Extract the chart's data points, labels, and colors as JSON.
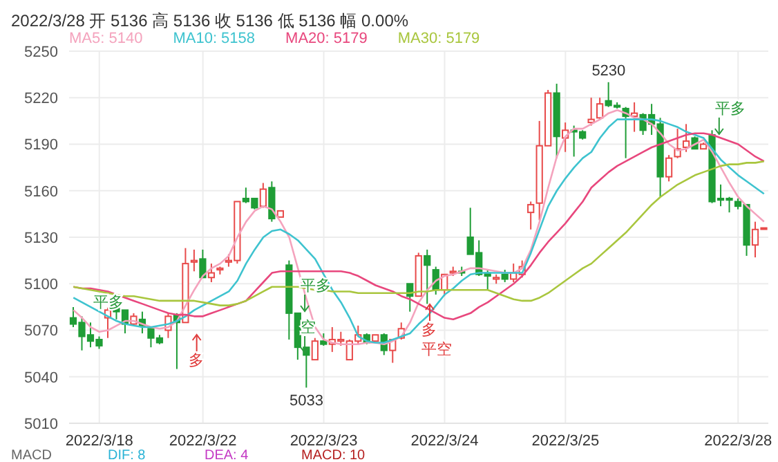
{
  "chart_data": {
    "type": "candlestick",
    "title": "2022/3/28 开 5136 高 5136 收 5136 低 5136 幅 0.00%",
    "categories": [
      null,
      null,
      null,
      "2022/3/18",
      null,
      null,
      null,
      null,
      null,
      null,
      null,
      null,
      null,
      null,
      null,
      "2022/3/22",
      null,
      null,
      null,
      null,
      null,
      null,
      null,
      null,
      null,
      null,
      null,
      null,
      null,
      "2022/3/23",
      null,
      null,
      null,
      null,
      null,
      null,
      null,
      null,
      null,
      null,
      null,
      null,
      null,
      "2022/3/24",
      null,
      null,
      null,
      null,
      null,
      null,
      null,
      null,
      null,
      null,
      null,
      null,
      null,
      "2022/3/25",
      null,
      null,
      null,
      null,
      null,
      null,
      null,
      null,
      null,
      null,
      null,
      null,
      null,
      null,
      null,
      null,
      null,
      null,
      null,
      "2022/3/28",
      null,
      null,
      null
    ],
    "ohlc": [
      [
        5078,
        5085,
        5072,
        5074
      ],
      [
        5075,
        5079,
        5057,
        5066
      ],
      [
        5067,
        5075,
        5059,
        5063
      ],
      [
        5064,
        5066,
        5058,
        5060
      ],
      [
        5078,
        5085,
        5065,
        5083
      ],
      [
        5084,
        5086,
        5077,
        5082
      ],
      [
        5083,
        5083,
        5068,
        5074
      ],
      [
        5074,
        5081,
        5073,
        5079
      ],
      [
        5077,
        5082,
        5068,
        5073
      ],
      [
        5071,
        5071,
        5059,
        5065
      ],
      [
        5065,
        5067,
        5061,
        5062
      ],
      [
        5070,
        5081,
        5065,
        5079
      ],
      [
        5080,
        5081,
        5045,
        5075
      ],
      [
        5075,
        5123,
        5075,
        5113
      ],
      [
        5114,
        5122,
        5108,
        5115
      ],
      [
        5116,
        5122,
        5104,
        5104
      ],
      [
        5104,
        5113,
        5101,
        5107
      ],
      [
        5109,
        5111,
        5106,
        5110
      ],
      [
        5114,
        5119,
        5111,
        5115
      ],
      [
        5115,
        5153,
        5113,
        5153
      ],
      [
        5155,
        5162,
        5152,
        5153
      ],
      [
        5155,
        5155,
        5148,
        5149
      ],
      [
        5150,
        5165,
        5149,
        5161
      ],
      [
        5162,
        5166,
        5140,
        5142
      ],
      [
        5143,
        5147,
        5143,
        5147
      ],
      [
        5112,
        5115,
        5064,
        5081
      ],
      [
        5081,
        5081,
        5051,
        5059
      ],
      [
        5059,
        5059,
        5033,
        5054
      ],
      [
        5051,
        5065,
        5051,
        5063
      ],
      [
        5063,
        5068,
        5060,
        5061
      ],
      [
        5061,
        5072,
        5056,
        5064
      ],
      [
        5063,
        5069,
        5060,
        5064
      ],
      [
        5051,
        5064,
        5051,
        5063
      ],
      [
        5063,
        5073,
        5061,
        5067
      ],
      [
        5067,
        5068,
        5061,
        5062
      ],
      [
        5063,
        5067,
        5063,
        5067
      ],
      [
        5067,
        5068,
        5054,
        5057
      ],
      [
        5057,
        5064,
        5049,
        5064
      ],
      [
        5065,
        5075,
        5064,
        5071
      ],
      [
        5100,
        5100,
        5082,
        5092
      ],
      [
        5092,
        5120,
        5092,
        5118
      ],
      [
        5118,
        5122,
        5087,
        5112
      ],
      [
        5109,
        5111,
        5093,
        5096
      ],
      [
        5096,
        5106,
        5092,
        5106
      ],
      [
        5107,
        5111,
        5105,
        5108
      ],
      [
        5108,
        5111,
        5105,
        5107
      ],
      [
        5130,
        5149,
        5119,
        5119
      ],
      [
        5120,
        5128,
        5105,
        5106
      ],
      [
        5107,
        5109,
        5096,
        5105
      ],
      [
        5103,
        5106,
        5100,
        5104
      ],
      [
        5106,
        5109,
        5101,
        5103
      ],
      [
        5103,
        5113,
        5101,
        5107
      ],
      [
        5106,
        5115,
        5104,
        5111
      ],
      [
        5146,
        5153,
        5135,
        5151
      ],
      [
        5152,
        5205,
        5141,
        5189
      ],
      [
        5189,
        5225,
        5189,
        5223
      ],
      [
        5223,
        5229,
        5181,
        5195
      ],
      [
        5194,
        5204,
        5185,
        5199
      ],
      [
        5199,
        5202,
        5182,
        5198
      ],
      [
        5198,
        5199,
        5193,
        5194
      ],
      [
        5204,
        5220,
        5202,
        5206
      ],
      [
        5207,
        5220,
        5206,
        5216
      ],
      [
        5218,
        5230,
        5214,
        5215
      ],
      [
        5215,
        5217,
        5213,
        5214
      ],
      [
        5213,
        5214,
        5181,
        5208
      ],
      [
        5208,
        5217,
        5198,
        5210
      ],
      [
        5209,
        5210,
        5196,
        5199
      ],
      [
        5209,
        5216,
        5196,
        5203
      ],
      [
        5203,
        5207,
        5156,
        5169
      ],
      [
        5169,
        5183,
        5166,
        5181
      ],
      [
        5182,
        5200,
        5181,
        5187
      ],
      [
        5188,
        5203,
        5185,
        5192
      ],
      [
        5194,
        5195,
        5187,
        5187
      ],
      [
        5187,
        5191,
        5187,
        5190
      ],
      [
        5196,
        5199,
        5152,
        5153
      ],
      [
        5155,
        5164,
        5150,
        5154
      ],
      [
        5155,
        5156,
        5146,
        5154
      ],
      [
        5153,
        5155,
        5148,
        5150
      ],
      [
        5151,
        5151,
        5118,
        5125
      ],
      [
        5125,
        5140,
        5117,
        5135
      ],
      [
        5136,
        5136,
        5136,
        5136
      ]
    ],
    "colors": [
      "#1f9d36",
      "#1f9d36",
      "#1f9d36",
      "#1f9d36",
      "#e84a4a",
      "#1f9d36",
      "#1f9d36",
      "#e84a4a",
      "#1f9d36",
      "#1f9d36",
      "#1f9d36",
      "#e84a4a",
      "#1f9d36",
      "#e84a4a",
      "#e84a4a",
      "#1f9d36",
      "#e84a4a",
      "#e84a4a",
      "#e84a4a",
      "#e84a4a",
      "#1f9d36",
      "#1f9d36",
      "#e84a4a",
      "#1f9d36",
      "#e84a4a",
      "#1f9d36",
      "#1f9d36",
      "#1f9d36",
      "#e84a4a",
      "#1f9d36",
      "#e84a4a",
      "#e84a4a",
      "#e84a4a",
      "#e84a4a",
      "#1f9d36",
      "#e84a4a",
      "#1f9d36",
      "#e84a4a",
      "#e84a4a",
      "#1f9d36",
      "#e84a4a",
      "#1f9d36",
      "#1f9d36",
      "#e84a4a",
      "#e84a4a",
      "#1f9d36",
      "#1f9d36",
      "#1f9d36",
      "#1f9d36",
      "#e84a4a",
      "#1f9d36",
      "#e84a4a",
      "#e84a4a",
      "#e84a4a",
      "#e84a4a",
      "#e84a4a",
      "#1f9d36",
      "#e84a4a",
      "#1f9d36",
      "#1f9d36",
      "#e84a4a",
      "#e84a4a",
      "#1f9d36",
      "#1f9d36",
      "#1f9d36",
      "#e84a4a",
      "#1f9d36",
      "#1f9d36",
      "#1f9d36",
      "#e84a4a",
      "#e84a4a",
      "#e84a4a",
      "#1f9d36",
      "#e84a4a",
      "#1f9d36",
      "#1f9d36",
      "#1f9d36",
      "#1f9d36",
      "#1f9d36",
      "#e84a4a",
      "#e84a4a"
    ],
    "series": [
      {
        "type": "line",
        "name": "MA5: 5140",
        "color": "#f4a3bd",
        "values": [
          5083,
          5078,
          5072,
          5069,
          5070,
          5073,
          5076,
          5076,
          5074,
          5072,
          5071,
          5072,
          5076,
          5086,
          5096,
          5105,
          5110,
          5113,
          5118,
          5130,
          5140,
          5147,
          5150,
          5148,
          5140,
          5130,
          5110,
          5090,
          5072,
          5064,
          5062,
          5061,
          5061,
          5061,
          5062,
          5062,
          5061,
          5063,
          5066,
          5075,
          5088,
          5096,
          5102,
          5105,
          5106,
          5108,
          5110,
          5110,
          5109,
          5108,
          5107,
          5107,
          5110,
          5122,
          5140,
          5162,
          5182,
          5195,
          5200,
          5200,
          5203,
          5206,
          5210,
          5212,
          5210,
          5207,
          5206,
          5203,
          5197,
          5190,
          5186,
          5187,
          5190,
          5193,
          5185,
          5175,
          5165,
          5156,
          5150,
          5145,
          5140
        ]
      },
      {
        "type": "line",
        "name": "MA10: 5158",
        "color": "#3ec3cf",
        "values": [
          5091,
          5088,
          5085,
          5082,
          5079,
          5076,
          5074,
          5073,
          5072,
          5072,
          5073,
          5074,
          5076,
          5079,
          5083,
          5086,
          5089,
          5092,
          5095,
          5102,
          5113,
          5122,
          5130,
          5134,
          5135,
          5132,
          5128,
          5122,
          5116,
          5106,
          5096,
          5088,
          5078,
          5066,
          5063,
          5062,
          5062,
          5064,
          5066,
          5068,
          5074,
          5079,
          5086,
          5093,
          5097,
          5102,
          5106,
          5107,
          5107,
          5107,
          5107,
          5107,
          5107,
          5120,
          5135,
          5150,
          5160,
          5168,
          5175,
          5181,
          5185,
          5194,
          5201,
          5206,
          5206,
          5206,
          5206,
          5206,
          5205,
          5203,
          5201,
          5198,
          5196,
          5194,
          5187,
          5180,
          5175,
          5170,
          5166,
          5162,
          5158
        ]
      },
      {
        "type": "line",
        "name": "MA20: 5179",
        "color": "#e8477d",
        "values": [
          5098,
          5097,
          5097,
          5096,
          5095,
          5093,
          5091,
          5089,
          5087,
          5085,
          5083,
          5081,
          5080,
          5080,
          5079,
          5079,
          5081,
          5083,
          5085,
          5087,
          5089,
          5095,
          5101,
          5107,
          5108,
          5108,
          5108,
          5108,
          5108,
          5108,
          5108,
          5108,
          5107,
          5105,
          5102,
          5099,
          5097,
          5095,
          5092,
          5090,
          5087,
          5084,
          5081,
          5078,
          5077,
          5079,
          5081,
          5085,
          5088,
          5092,
          5096,
          5100,
          5105,
          5112,
          5120,
          5127,
          5133,
          5139,
          5146,
          5153,
          5162,
          5167,
          5172,
          5176,
          5179,
          5182,
          5185,
          5188,
          5190,
          5192,
          5194,
          5196,
          5197,
          5197,
          5196,
          5194,
          5192,
          5190,
          5186,
          5182,
          5179
        ]
      },
      {
        "type": "line",
        "name": "MA30: 5179",
        "color": "#a9c63e",
        "values": [
          5098,
          5097,
          5096,
          5095,
          5094,
          5093,
          5092,
          5092,
          5091,
          5090,
          5089,
          5089,
          5089,
          5089,
          5089,
          5088,
          5087,
          5086,
          5086,
          5087,
          5089,
          5092,
          5095,
          5098,
          5098,
          5098,
          5098,
          5097,
          5096,
          5096,
          5095,
          5095,
          5095,
          5094,
          5094,
          5094,
          5094,
          5094,
          5094,
          5094,
          5095,
          5095,
          5096,
          5096,
          5096,
          5096,
          5096,
          5096,
          5096,
          5094,
          5092,
          5090,
          5089,
          5089,
          5091,
          5094,
          5098,
          5102,
          5106,
          5110,
          5113,
          5118,
          5123,
          5128,
          5133,
          5139,
          5145,
          5151,
          5156,
          5160,
          5164,
          5167,
          5170,
          5172,
          5174,
          5176,
          5177,
          5177,
          5178,
          5178,
          5179
        ]
      }
    ],
    "ylim": [
      5010,
      5250
    ],
    "yticks": [
      5010,
      5040,
      5070,
      5100,
      5130,
      5160,
      5190,
      5220,
      5250
    ],
    "grid": true,
    "legend": "top left",
    "marker": "none",
    "annotations": [
      "平多",
      "多",
      "平多",
      "空",
      "多",
      "平空",
      "平多",
      {
        "text": "5230",
        "y": 5230
      },
      {
        "text": "5033",
        "y": 5033
      },
      "MACD",
      "DIF: 8",
      "DEA: 4",
      "MACD: 10"
    ]
  }
}
